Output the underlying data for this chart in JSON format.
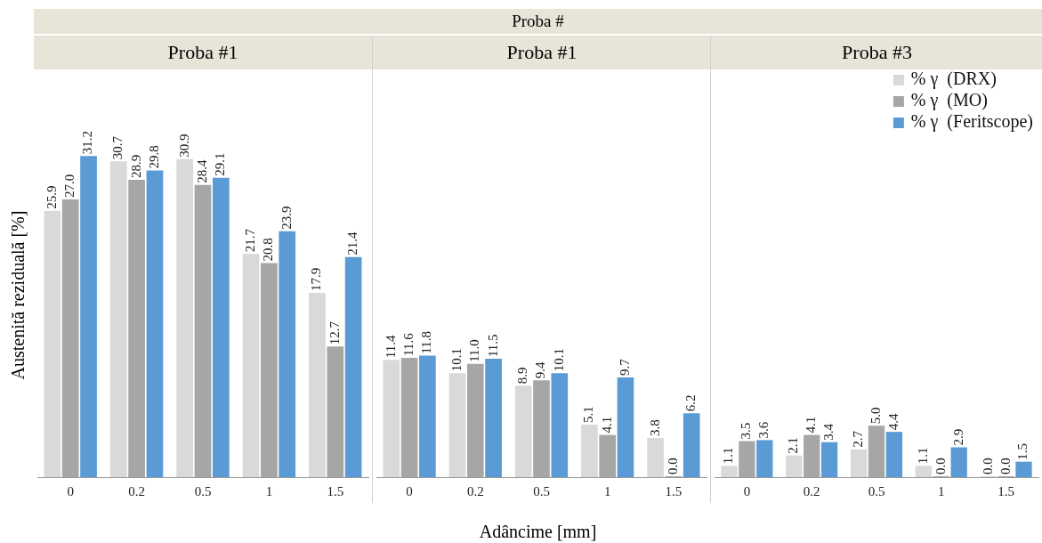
{
  "chart_data": [
    {
      "type": "bar",
      "title": "Proba #1",
      "annotations": [
        "Proba #"
      ],
      "ylabel": "Austenită reziduală  [%]",
      "categories": [
        "0",
        "0.2",
        "0.5",
        "1",
        "1.5"
      ],
      "data_labels": true,
      "legend": false,
      "grid": false,
      "tick_labels": "x",
      "series": [
        {
          "color": "#d9d9d9",
          "values": [
            25.9,
            30.7,
            30.9,
            21.7,
            17.9
          ],
          "value_labels": [
            "25.9",
            "30.7",
            "30.9",
            "21.7",
            "17.9"
          ]
        },
        {
          "color": "#a6a6a6",
          "values": [
            27.0,
            28.9,
            28.4,
            20.8,
            12.7
          ],
          "value_labels": [
            "27.0",
            "28.9",
            "28.4",
            "20.8",
            "12.7"
          ]
        },
        {
          "color": "#5b9bd5",
          "values": [
            31.2,
            29.8,
            29.1,
            23.9,
            21.4
          ],
          "value_labels": [
            "31.2",
            "29.8",
            "29.1",
            "23.9",
            "21.4"
          ]
        }
      ]
    },
    {
      "type": "bar",
      "title": "Proba #1",
      "xlabel": "Adâncime  [mm]",
      "categories": [
        "0",
        "0.2",
        "0.5",
        "1",
        "1.5"
      ],
      "data_labels": true,
      "legend": false,
      "grid": false,
      "tick_labels": "x",
      "series": [
        {
          "color": "#d9d9d9",
          "values": [
            11.4,
            10.1,
            8.9,
            5.1,
            3.8
          ],
          "value_labels": [
            "11.4",
            "10.1",
            "8.9",
            "5.1",
            "3.8"
          ]
        },
        {
          "color": "#a6a6a6",
          "values": [
            11.6,
            11.0,
            9.4,
            4.1,
            0.0
          ],
          "value_labels": [
            "11.6",
            "11.0",
            "9.4",
            "4.1",
            "0.0"
          ]
        },
        {
          "color": "#5b9bd5",
          "values": [
            11.8,
            11.5,
            10.1,
            9.7,
            6.2
          ],
          "value_labels": [
            "11.8",
            "11.5",
            "10.1",
            "9.7",
            "6.2"
          ]
        }
      ]
    },
    {
      "type": "bar",
      "title": "Proba #3",
      "categories": [
        "0",
        "0.2",
        "0.5",
        "1",
        "1.5"
      ],
      "data_labels": true,
      "legend": "top right",
      "grid": false,
      "tick_labels": "x",
      "series": [
        {
          "name": "% γ  (DRX)",
          "color": "#d9d9d9",
          "values": [
            1.1,
            2.1,
            2.7,
            1.1,
            0.0
          ],
          "value_labels": [
            "1.1",
            "2.1",
            "2.7",
            "1.1",
            "0.0"
          ]
        },
        {
          "name": "% γ  (MO)",
          "color": "#a6a6a6",
          "values": [
            3.5,
            4.1,
            5.0,
            0.0,
            0.0
          ],
          "value_labels": [
            "3.5",
            "4.1",
            "5.0",
            "0.0",
            "0.0"
          ]
        },
        {
          "name": "% γ  (Feritscope)",
          "color": "#5b9bd5",
          "values": [
            3.6,
            3.4,
            4.4,
            2.9,
            1.5
          ],
          "value_labels": [
            "3.6",
            "3.4",
            "4.4",
            "2.9",
            "1.5"
          ]
        }
      ]
    }
  ]
}
